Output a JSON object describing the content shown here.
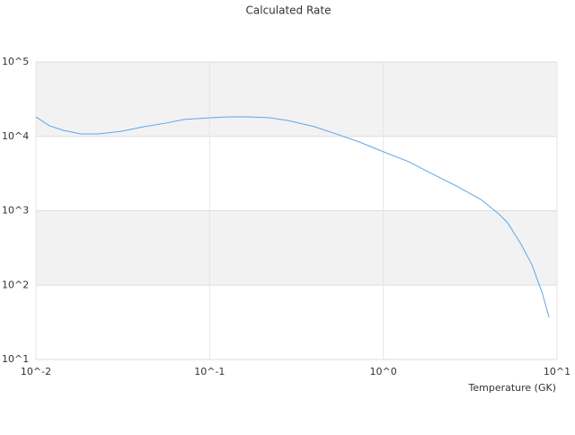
{
  "chart_data": {
    "type": "line",
    "title": "Calculated Rate",
    "x_label": "Temperature (GK)",
    "x_scale": "log",
    "y_scale": "log",
    "grid": true,
    "xlim": [
      0.01,
      10
    ],
    "ylim": [
      10,
      100000
    ],
    "xticks": [
      {
        "value": 0.01,
        "label": "10^-2"
      },
      {
        "value": 0.1,
        "label": "10^-1"
      },
      {
        "value": 1,
        "label": "10^0"
      },
      {
        "value": 10,
        "label": "10^1"
      }
    ],
    "yticks": [
      {
        "value": 10,
        "label": "10^1"
      },
      {
        "value": 100,
        "label": "10^2"
      },
      {
        "value": 1000,
        "label": "10^3"
      },
      {
        "value": 10000,
        "label": "10^4"
      },
      {
        "value": 100000,
        "label": "10^5"
      }
    ],
    "x": [
      0.01,
      0.01196,
      0.01429,
      0.01815,
      0.023,
      0.031,
      0.0418,
      0.0562,
      0.0714,
      0.102,
      0.1295,
      0.1643,
      0.221,
      0.281,
      0.402,
      0.574,
      0.728,
      1.04,
      1.4,
      1.89,
      2.7,
      3.64,
      4.62,
      5.2,
      6.22,
      7.18,
      8.19,
      9.0
    ],
    "series": [
      {
        "color": "#5ea6e8",
        "values": [
          18300,
          13900,
          12100,
          10800,
          10800,
          11700,
          13500,
          15100,
          16900,
          17800,
          18300,
          18300,
          17800,
          16400,
          13500,
          10200,
          8400,
          6000,
          4560,
          3180,
          2090,
          1420,
          908,
          687,
          352,
          186,
          80.5,
          37
        ]
      }
    ]
  }
}
